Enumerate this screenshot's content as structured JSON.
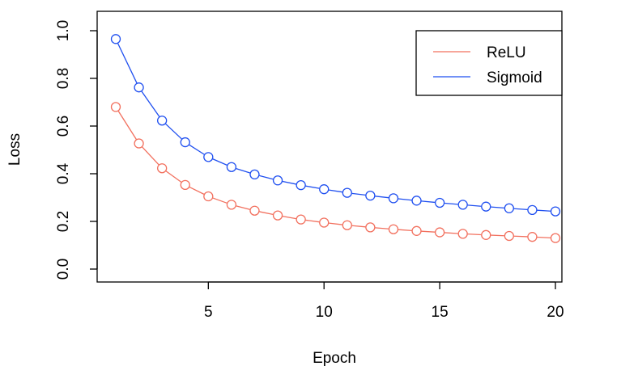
{
  "chart_data": {
    "type": "line",
    "title": "",
    "xlabel": "Epoch",
    "ylabel": "Loss",
    "xlim": [
      1,
      20
    ],
    "ylim": [
      0.0,
      1.0
    ],
    "x_ticks": [
      5,
      10,
      15,
      20
    ],
    "x_tick_labels": [
      "5",
      "10",
      "15",
      "20"
    ],
    "y_ticks": [
      0.0,
      0.2,
      0.4,
      0.6,
      0.8,
      1.0
    ],
    "y_tick_labels": [
      "0.0",
      "0.2",
      "0.4",
      "0.6",
      "0.8",
      "1.0"
    ],
    "grid": false,
    "legend_position": "top-right",
    "x": [
      1,
      2,
      3,
      4,
      5,
      6,
      7,
      8,
      9,
      10,
      11,
      12,
      13,
      14,
      15,
      16,
      17,
      18,
      19,
      20
    ],
    "series": [
      {
        "name": "ReLU",
        "color": "#F2705E",
        "marker": "open-circle",
        "values": [
          0.68,
          0.527,
          0.423,
          0.353,
          0.305,
          0.27,
          0.245,
          0.225,
          0.208,
          0.195,
          0.184,
          0.175,
          0.167,
          0.16,
          0.154,
          0.148,
          0.143,
          0.139,
          0.135,
          0.13
        ]
      },
      {
        "name": "Sigmoid",
        "color": "#1F4FF0",
        "marker": "open-circle",
        "values": [
          0.965,
          0.762,
          0.623,
          0.532,
          0.47,
          0.428,
          0.397,
          0.372,
          0.352,
          0.335,
          0.32,
          0.308,
          0.297,
          0.287,
          0.278,
          0.27,
          0.262,
          0.255,
          0.248,
          0.242
        ]
      }
    ]
  }
}
